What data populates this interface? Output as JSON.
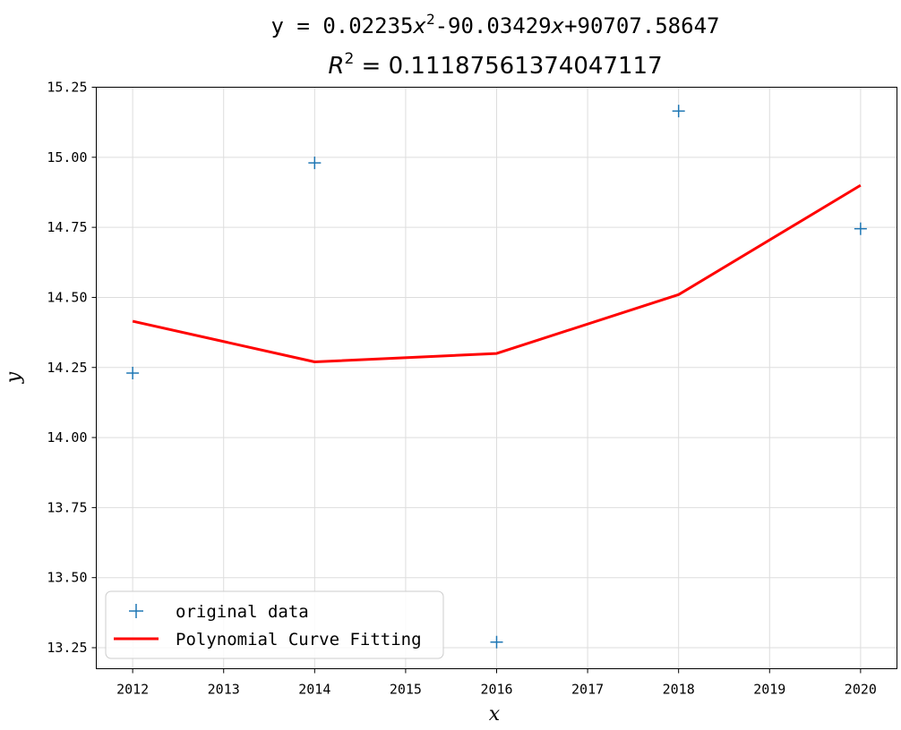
{
  "chart_data": {
    "type": "scatter",
    "title": {
      "prefix": "y = 0.02235",
      "var": "x",
      "power": "2",
      "middle": "-90.03429",
      "suffix": "+90707.58647"
    },
    "subtitle": {
      "symbol": "R",
      "power": "2",
      "value": " = 0.11187561374047117"
    },
    "xlabel": "x",
    "ylabel": "y",
    "xlim": [
      2011.6,
      2020.4
    ],
    "ylim": [
      13.175,
      15.25
    ],
    "x_ticks": [
      "2012",
      "2013",
      "2014",
      "2015",
      "2016",
      "2017",
      "2018",
      "2019",
      "2020"
    ],
    "y_ticks": [
      "13.25",
      "13.50",
      "13.75",
      "14.00",
      "14.25",
      "14.50",
      "14.75",
      "15.00",
      "15.25"
    ],
    "grid": true,
    "legend_position": "lower-left",
    "series": [
      {
        "name": "original data",
        "kind": "scatter",
        "marker": "+",
        "color": "#1f77b4",
        "x": [
          2012,
          2014,
          2016,
          2018,
          2020
        ],
        "y": [
          14.23,
          14.98,
          13.27,
          15.165,
          14.745
        ]
      },
      {
        "name": "Polynomial Curve Fitting",
        "kind": "line",
        "color": "#ff0000",
        "x": [
          2012,
          2014,
          2016,
          2018,
          2020
        ],
        "y": [
          14.415,
          14.27,
          14.3,
          14.51,
          14.9
        ]
      }
    ]
  }
}
